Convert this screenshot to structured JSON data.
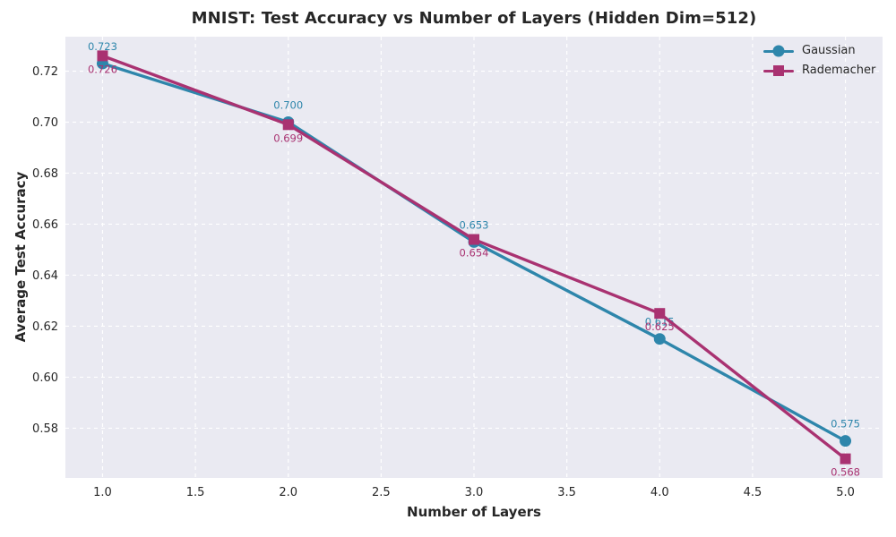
{
  "chart_data": {
    "type": "line",
    "title": "MNIST: Test Accuracy vs Number of Layers (Hidden Dim=512)",
    "xlabel": "Number of Layers",
    "ylabel": "Average Test Accuracy",
    "x": [
      1,
      2,
      3,
      4,
      5
    ],
    "series": [
      {
        "name": "Gaussian",
        "color": "#2E86AB",
        "marker": "circle",
        "values": [
          0.723,
          0.7,
          0.653,
          0.615,
          0.575
        ],
        "point_labels": [
          "0.723",
          "0.700",
          "0.653",
          "0.615",
          "0.575"
        ],
        "label_side": "above"
      },
      {
        "name": "Rademacher",
        "color": "#A93271",
        "marker": "square",
        "values": [
          0.726,
          0.699,
          0.654,
          0.625,
          0.568
        ],
        "point_labels": [
          "0.726",
          "0.699",
          "0.654",
          "0.625",
          "0.568"
        ],
        "label_side": "below"
      }
    ],
    "x_ticks": {
      "values": [
        1.0,
        1.5,
        2.0,
        2.5,
        3.0,
        3.5,
        4.0,
        4.5,
        5.0
      ],
      "labels": [
        "1.0",
        "1.5",
        "2.0",
        "2.5",
        "3.0",
        "3.5",
        "4.0",
        "4.5",
        "5.0"
      ]
    },
    "y_ticks": {
      "values": [
        0.58,
        0.6,
        0.62,
        0.64,
        0.66,
        0.68,
        0.7,
        0.72
      ],
      "labels": [
        "0.58",
        "0.60",
        "0.62",
        "0.64",
        "0.66",
        "0.68",
        "0.70",
        "0.72"
      ]
    },
    "xlim": [
      0.8,
      5.2
    ],
    "ylim": [
      0.5605,
      0.7335
    ],
    "grid": "dashed-white",
    "legend_position": "upper-right",
    "colors": {
      "plot_bg": "#EAEAF2",
      "grid": "#FFFFFF",
      "text": "#262626"
    }
  }
}
